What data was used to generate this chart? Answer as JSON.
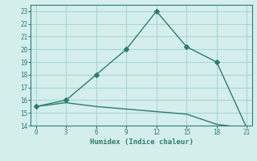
{
  "xlabel": "Humidex (Indice chaleur)",
  "line1_x": [
    0,
    3,
    6,
    9,
    12,
    15,
    18,
    21
  ],
  "line1_y": [
    15.5,
    16.0,
    18.0,
    20.0,
    23.0,
    20.2,
    19.0,
    13.8
  ],
  "line2_x": [
    0,
    3,
    6,
    9,
    12,
    15,
    18,
    21
  ],
  "line2_y": [
    15.5,
    15.8,
    15.5,
    15.3,
    15.1,
    14.9,
    14.1,
    13.8
  ],
  "line_color": "#2e7d6e",
  "bg_color": "#d4eeec",
  "grid_color": "#a8d8d4",
  "xlim": [
    -0.5,
    21.5
  ],
  "ylim": [
    14,
    23.5
  ],
  "xticks": [
    0,
    3,
    6,
    9,
    12,
    15,
    18,
    21
  ],
  "yticks": [
    14,
    15,
    16,
    17,
    18,
    19,
    20,
    21,
    22,
    23
  ],
  "marker": "D",
  "marker_size": 3,
  "linewidth": 1.0
}
